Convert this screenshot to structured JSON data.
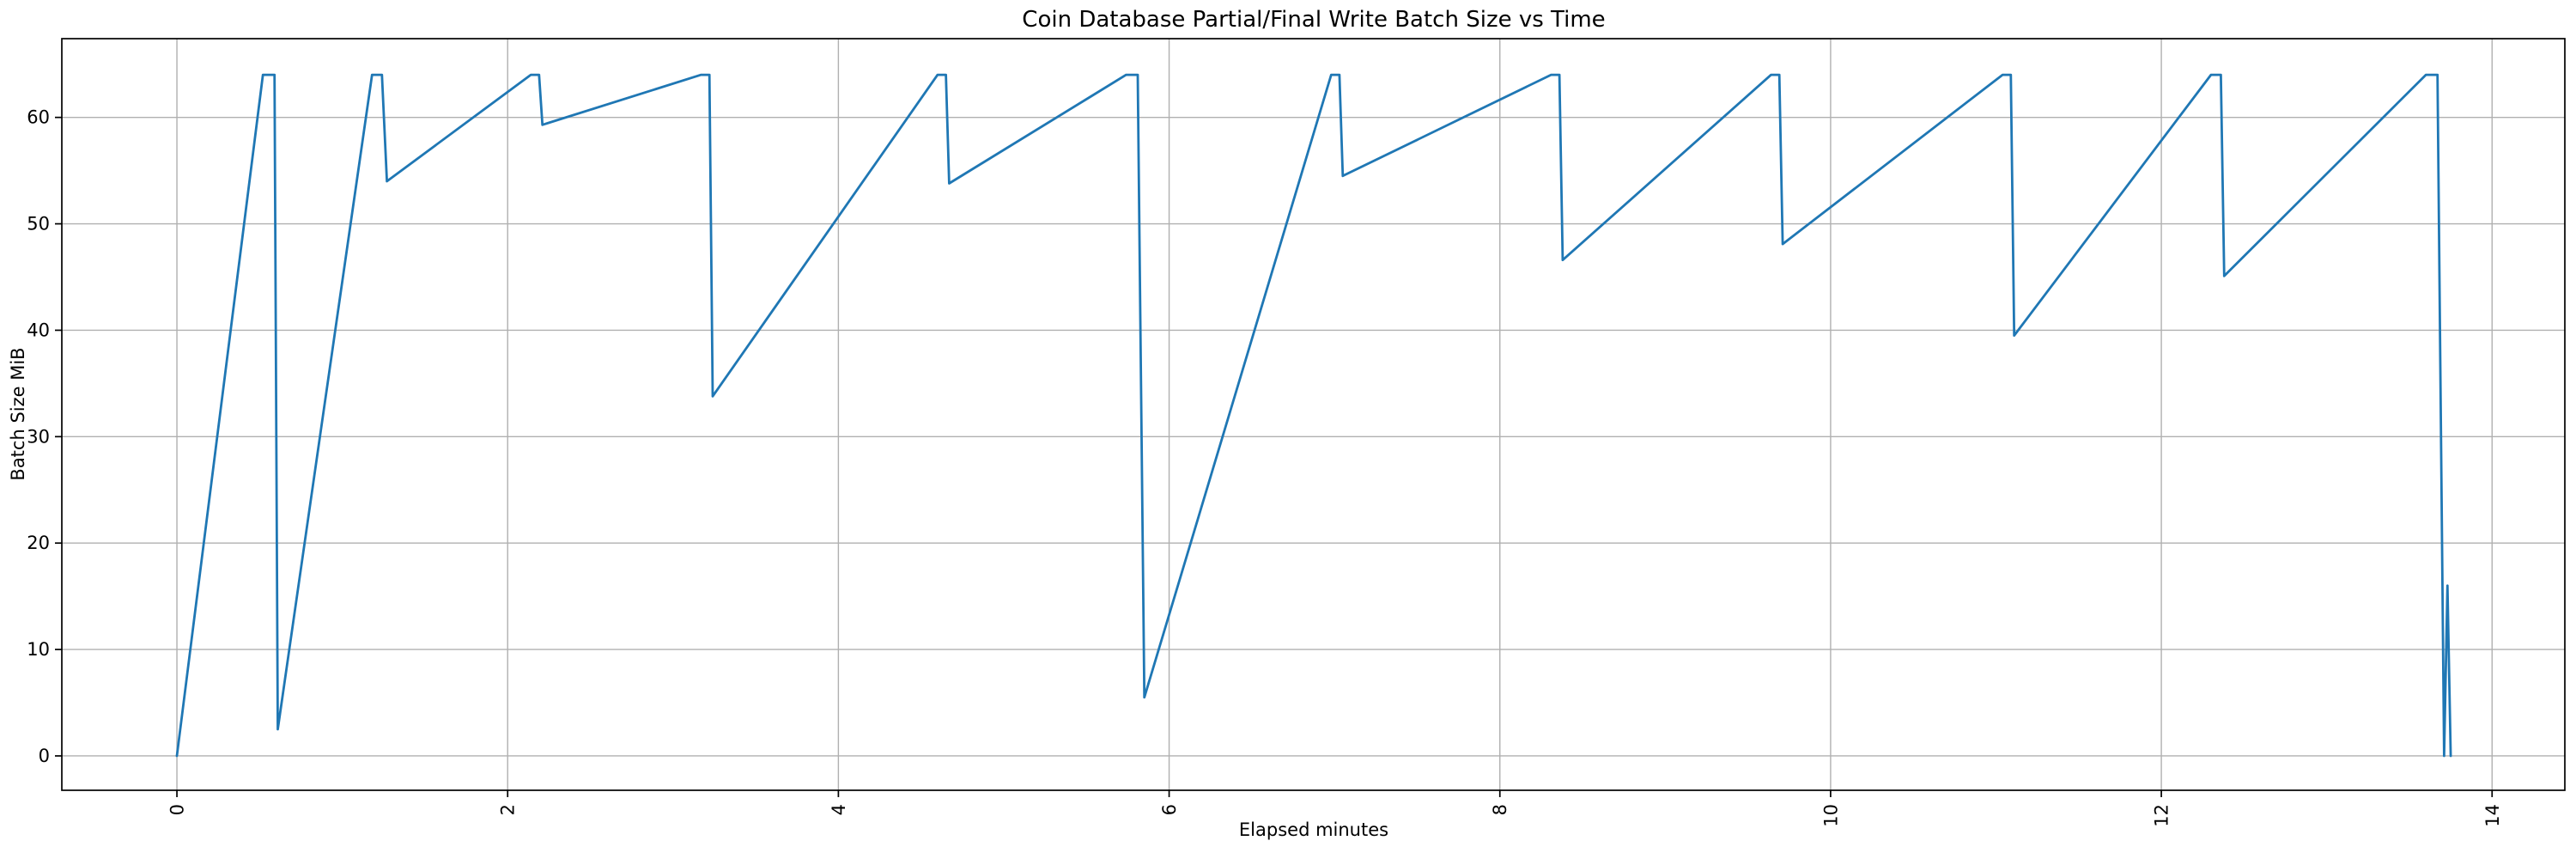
{
  "chart_data": {
    "type": "line",
    "title": "Coin Database Partial/Final Write Batch Size vs Time",
    "xlabel": "Elapsed minutes",
    "ylabel": "Batch Size MiB",
    "xlim": [
      -0.696,
      14.44
    ],
    "ylim": [
      -3.23,
      67.4
    ],
    "xticks": [
      0,
      2,
      4,
      6,
      8,
      10,
      12,
      14
    ],
    "yticks": [
      0,
      10,
      20,
      30,
      40,
      50,
      60
    ],
    "xtick_rotation_deg": 90,
    "grid": true,
    "legend": false,
    "line_color": "#1f77b4",
    "grid_color": "#b0b0b0",
    "spine_color": "#000000",
    "background_color": "#ffffff",
    "series": [
      {
        "name": "batch_size_mib",
        "points": [
          [
            0.0,
            0.0
          ],
          [
            0.52,
            64.0
          ],
          [
            0.59,
            64.0
          ],
          [
            0.61,
            2.5
          ],
          [
            1.18,
            64.0
          ],
          [
            1.24,
            64.0
          ],
          [
            1.27,
            54.0
          ],
          [
            2.14,
            64.0
          ],
          [
            2.19,
            64.0
          ],
          [
            2.21,
            59.3
          ],
          [
            3.17,
            64.0
          ],
          [
            3.22,
            64.0
          ],
          [
            3.24,
            33.8
          ],
          [
            4.6,
            64.0
          ],
          [
            4.65,
            64.0
          ],
          [
            4.67,
            53.8
          ],
          [
            5.74,
            64.0
          ],
          [
            5.81,
            64.0
          ],
          [
            5.85,
            5.5
          ],
          [
            6.98,
            64.0
          ],
          [
            7.03,
            64.0
          ],
          [
            7.05,
            54.5
          ],
          [
            8.31,
            64.0
          ],
          [
            8.36,
            64.0
          ],
          [
            8.38,
            46.6
          ],
          [
            9.64,
            64.0
          ],
          [
            9.69,
            64.0
          ],
          [
            9.71,
            48.1
          ],
          [
            11.04,
            64.0
          ],
          [
            11.09,
            64.0
          ],
          [
            11.11,
            39.5
          ],
          [
            12.3,
            64.0
          ],
          [
            12.36,
            64.0
          ],
          [
            12.38,
            45.1
          ],
          [
            13.6,
            64.0
          ],
          [
            13.67,
            64.0
          ],
          [
            13.71,
            0.0
          ],
          [
            13.73,
            16.0
          ],
          [
            13.75,
            0.0
          ]
        ]
      }
    ]
  }
}
